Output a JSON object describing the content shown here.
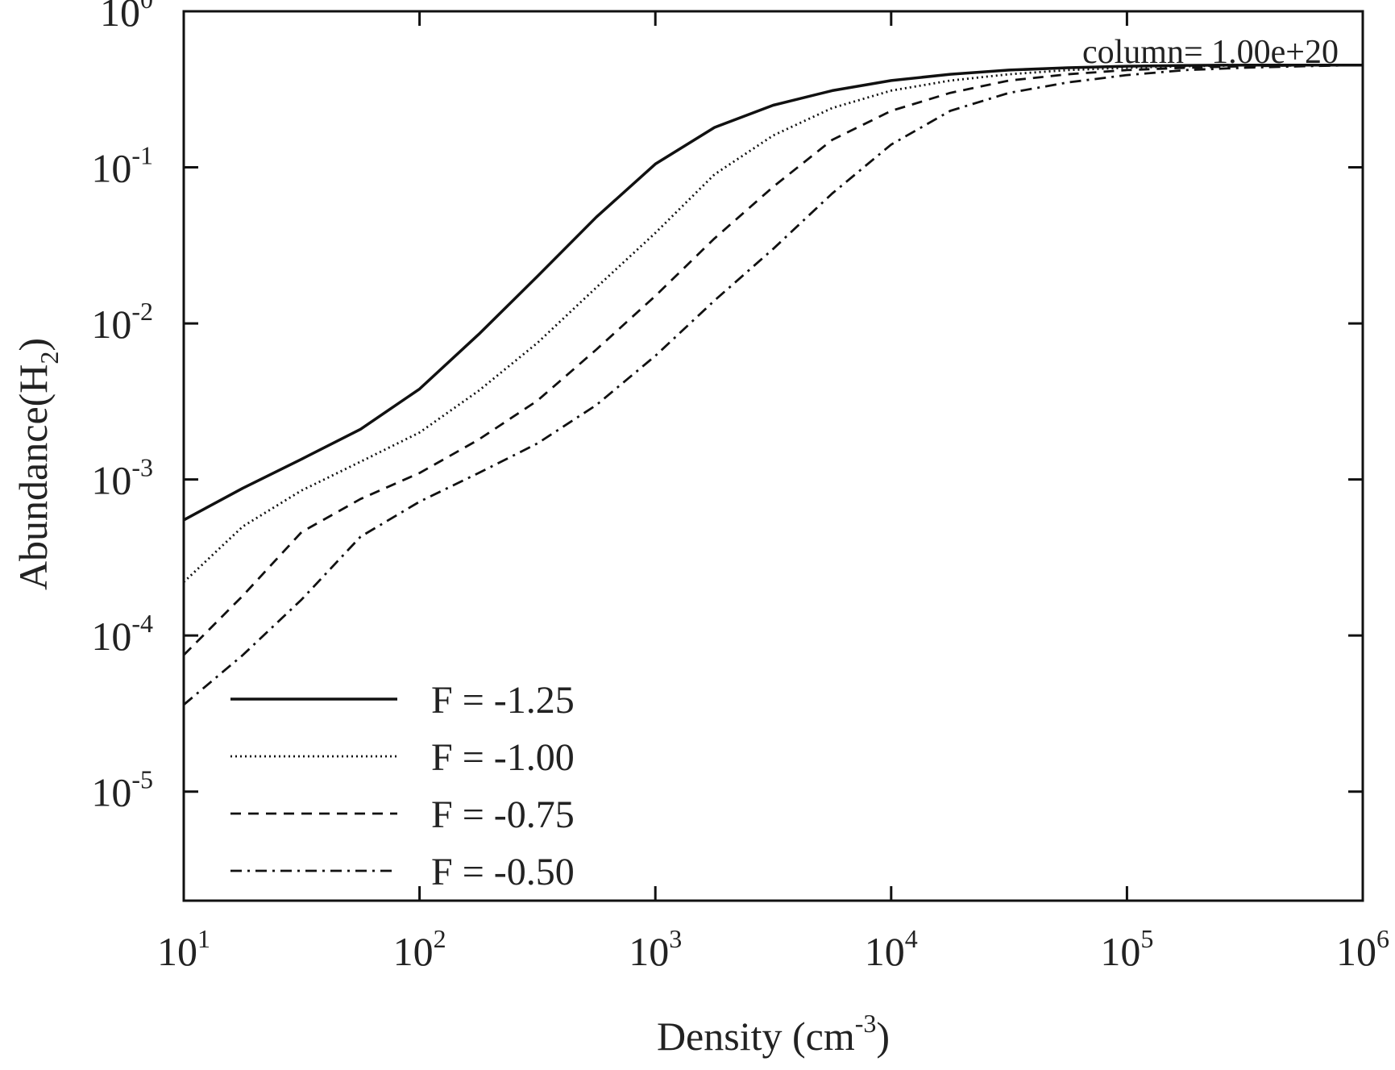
{
  "chart_data": {
    "type": "line",
    "xscale": "log",
    "yscale": "log",
    "xlim": [
      10,
      1000000
    ],
    "ylim": [
      2e-06,
      1
    ],
    "xlabel": {
      "main": "Density (cm",
      "sup": "-3",
      "tail": ")"
    },
    "ylabel": {
      "main": "Abundance(H",
      "sub": "2",
      "tail": ")"
    },
    "annotation": "column= 1.00e+20",
    "x_ticks": [
      {
        "base": "10",
        "exp": "1",
        "value": 10
      },
      {
        "base": "10",
        "exp": "2",
        "value": 100
      },
      {
        "base": "10",
        "exp": "3",
        "value": 1000
      },
      {
        "base": "10",
        "exp": "4",
        "value": 10000
      },
      {
        "base": "10",
        "exp": "5",
        "value": 100000
      },
      {
        "base": "10",
        "exp": "6",
        "value": 1000000
      }
    ],
    "y_ticks": [
      {
        "base": "10",
        "exp": "0",
        "value": 1
      },
      {
        "base": "10",
        "exp": "-1",
        "value": 0.1
      },
      {
        "base": "10",
        "exp": "-2",
        "value": 0.01
      },
      {
        "base": "10",
        "exp": "-3",
        "value": 0.001
      },
      {
        "base": "10",
        "exp": "-4",
        "value": 0.0001
      },
      {
        "base": "10",
        "exp": "-5",
        "value": 1e-05
      }
    ],
    "legend_position": "bottom-left",
    "x": [
      10,
      17.8,
      31.6,
      56.2,
      100,
      178,
      316,
      562,
      1000,
      1780,
      3160,
      5620,
      10000,
      17800,
      31600,
      56200,
      100000,
      178000,
      316000,
      562000,
      1000000
    ],
    "series": [
      {
        "name": "F = -1.25",
        "dash": "solid",
        "values": [
          0.00055,
          0.00088,
          0.00135,
          0.0021,
          0.0038,
          0.0085,
          0.02,
          0.048,
          0.105,
          0.18,
          0.25,
          0.31,
          0.36,
          0.395,
          0.42,
          0.435,
          0.445,
          0.45,
          0.452,
          0.452,
          0.452
        ]
      },
      {
        "name": "F = -1.00",
        "dash": "dotted",
        "values": [
          0.00022,
          0.0005,
          0.00085,
          0.0013,
          0.002,
          0.0037,
          0.0075,
          0.017,
          0.038,
          0.09,
          0.16,
          0.24,
          0.31,
          0.36,
          0.395,
          0.42,
          0.435,
          0.445,
          0.45,
          0.452,
          0.452
        ]
      },
      {
        "name": "F = -0.75",
        "dash": "dashed",
        "values": [
          7.5e-05,
          0.00018,
          0.00046,
          0.00075,
          0.0011,
          0.0018,
          0.0032,
          0.0068,
          0.015,
          0.035,
          0.075,
          0.15,
          0.23,
          0.3,
          0.36,
          0.395,
          0.42,
          0.435,
          0.445,
          0.45,
          0.452
        ]
      },
      {
        "name": "F = -0.50",
        "dash": "dashdot",
        "values": [
          3.6e-05,
          7.5e-05,
          0.00017,
          0.00043,
          0.00072,
          0.0011,
          0.0017,
          0.003,
          0.0062,
          0.014,
          0.03,
          0.068,
          0.14,
          0.23,
          0.3,
          0.35,
          0.39,
          0.42,
          0.435,
          0.445,
          0.452
        ]
      }
    ]
  }
}
